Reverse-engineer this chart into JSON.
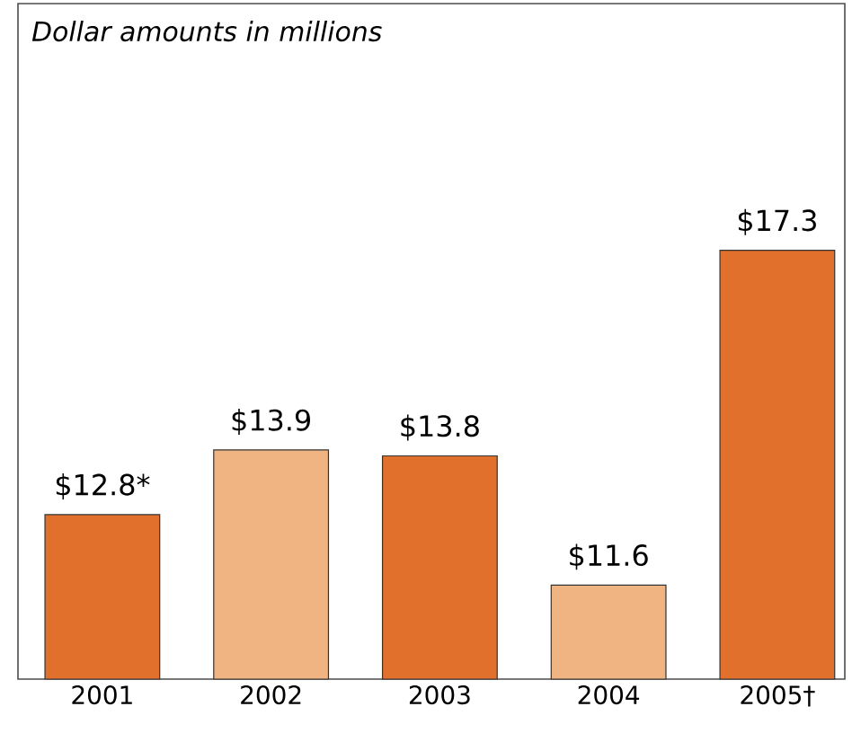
{
  "chart_data": {
    "type": "bar",
    "title": "Dollar amounts in millions",
    "categories": [
      "2001",
      "2002",
      "2003",
      "2004",
      "2005†"
    ],
    "values": [
      12.8,
      13.9,
      13.8,
      11.6,
      17.3
    ],
    "value_labels": [
      "$12.8*",
      "$13.9",
      "$13.8",
      "$11.6",
      "$17.3"
    ],
    "colors": [
      "#e0702c",
      "#f0b483",
      "#e0702c",
      "#f0b483",
      "#e0702c"
    ],
    "ylim": [
      10,
      21.5
    ]
  }
}
